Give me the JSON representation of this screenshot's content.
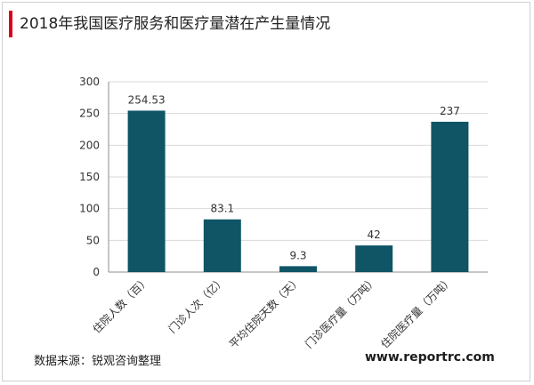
{
  "title": "2018年我国医疗服务和医疗量潜在产生量情况",
  "source": "数据来源：锐观咨询整理",
  "watermark": "www.reportrc.com",
  "colors": {
    "bar": "#0f5566",
    "title_accent": "#d9001b",
    "grid": "#d9d9d9",
    "axis": "#8c8c8c"
  },
  "chart_data": {
    "type": "bar",
    "categories": [
      "住院人数（百）",
      "门诊人次（亿）",
      "平均住院天数（天）",
      "门诊医疗量（万吨）",
      "住院医疗量（万吨）"
    ],
    "values": [
      254.53,
      83.1,
      9.3,
      42,
      237
    ],
    "data_labels": [
      "254.53",
      "83.1",
      "9.3",
      "42",
      "237"
    ],
    "yticks": [
      "0",
      "50",
      "100",
      "150",
      "200",
      "250",
      "300"
    ],
    "ylim": [
      0,
      300
    ],
    "grid": true
  }
}
